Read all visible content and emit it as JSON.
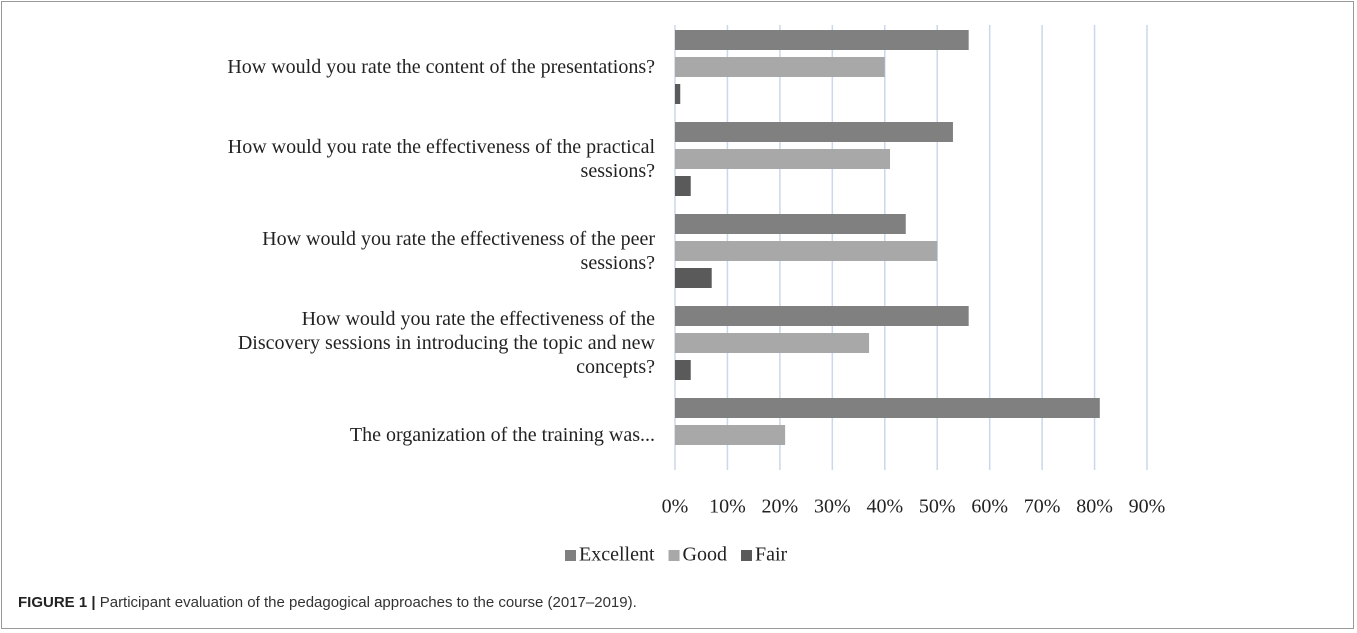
{
  "chart_data": {
    "type": "hbar",
    "categories": [
      "How would you rate the content of the presentations?",
      "How would you rate the effectiveness of the practical sessions?",
      "How would you rate the effectiveness of the peer sessions?",
      "How would you rate the effectiveness of the Discovery sessions in introducing the topic and new concepts?",
      "The organization of the training was..."
    ],
    "series": [
      {
        "name": "Excellent",
        "color": "#808080",
        "values": [
          56,
          53,
          44,
          56,
          81
        ]
      },
      {
        "name": "Good",
        "color": "#a8a8a8",
        "values": [
          40,
          41,
          50,
          37,
          21
        ]
      },
      {
        "name": "Fair",
        "color": "#5a5a5a",
        "values": [
          1,
          3,
          7,
          3,
          null
        ]
      }
    ],
    "xlim": [
      0,
      90
    ],
    "xticks": [
      {
        "value": 0,
        "label": "0%"
      },
      {
        "value": 10,
        "label": "10%"
      },
      {
        "value": 20,
        "label": "20%"
      },
      {
        "value": 30,
        "label": "30%"
      },
      {
        "value": 40,
        "label": "40%"
      },
      {
        "value": 50,
        "label": "50%"
      },
      {
        "value": 60,
        "label": "60%"
      },
      {
        "value": 70,
        "label": "70%"
      },
      {
        "value": 80,
        "label": "80%"
      },
      {
        "value": 90,
        "label": "90%"
      }
    ],
    "grid": true,
    "legend": "bottom"
  },
  "caption": {
    "label": "FIGURE 1 |",
    "text": "Participant evaluation of the pedagogical approaches to the course (2017–2019)."
  }
}
